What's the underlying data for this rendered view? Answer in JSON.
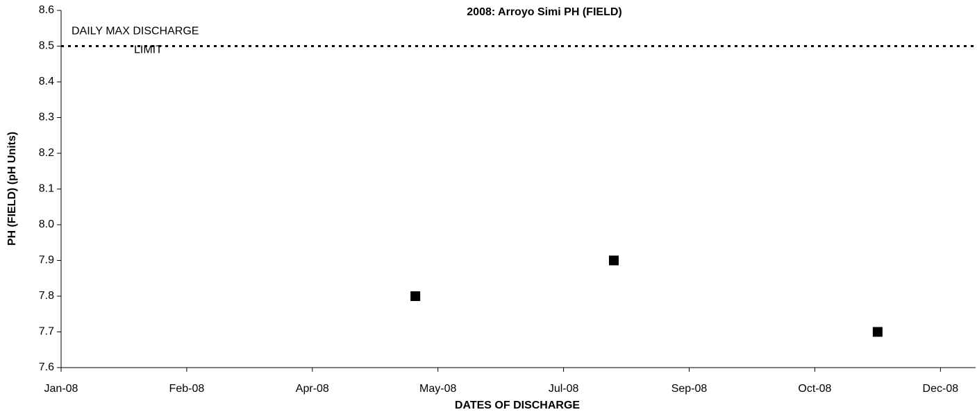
{
  "chart_data": {
    "type": "scatter",
    "title": "2008: Arroyo Simi PH (FIELD)",
    "x_label": "DATES OF DISCHARGE",
    "y_label": "PH (FIELD) (pH Units)",
    "series": [
      {
        "name": "PH (FIELD)",
        "color": "#000000",
        "marker": "square",
        "x": [
          "2008-05-21",
          "2008-08-08",
          "2008-11-21"
        ],
        "values": [
          7.8,
          7.9,
          7.7
        ]
      }
    ],
    "limit": {
      "value": 8.5,
      "label": [
        "DAILY MAX DISCHARGE",
        "LIMIT"
      ],
      "style": "dotted",
      "color": "#000000"
    },
    "xlim": [
      "2008-01-01",
      "2008-12-30"
    ],
    "xticks": [
      {
        "value": "2008-01-01",
        "label": "Jan-08"
      },
      {
        "value": "2008-02-20",
        "label": "Feb-08"
      },
      {
        "value": "2008-04-10",
        "label": "Apr-08"
      },
      {
        "value": "2008-05-30",
        "label": "May-08"
      },
      {
        "value": "2008-07-19",
        "label": "Jul-08"
      },
      {
        "value": "2008-09-07",
        "label": "Sep-08"
      },
      {
        "value": "2008-10-27",
        "label": "Oct-08"
      },
      {
        "value": "2008-12-16",
        "label": "Dec-08"
      }
    ],
    "ylim": [
      7.6,
      8.6
    ],
    "yticks": [
      7.6,
      7.7,
      7.8,
      7.9,
      {
        "value": 8,
        "label": "8.0"
      },
      8.1,
      8.2,
      8.3,
      8.4,
      8.5,
      8.6
    ],
    "grid": false
  }
}
